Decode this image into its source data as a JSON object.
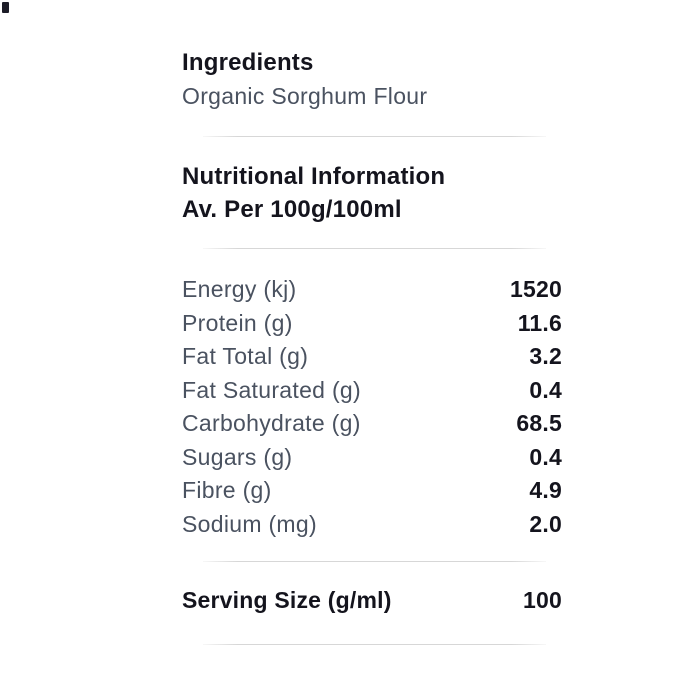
{
  "colors": {
    "background": "#ffffff",
    "heading": "#14141d",
    "label": "#4a5260",
    "value": "#14141d",
    "divider": "#d7d7d7",
    "corner_mark": "#1d1d28"
  },
  "ingredients": {
    "heading": "Ingredients",
    "value": "Organic Sorghum Flour"
  },
  "nutrition": {
    "heading": "Nutritional Information",
    "subheading": "Av. Per 100g/100ml",
    "rows": [
      {
        "label": "Energy (kj)",
        "value": "1520"
      },
      {
        "label": "Protein (g)",
        "value": "11.6"
      },
      {
        "label": "Fat Total (g)",
        "value": "3.2"
      },
      {
        "label": "Fat Saturated (g)",
        "value": "0.4"
      },
      {
        "label": "Carbohydrate (g)",
        "value": "68.5"
      },
      {
        "label": "Sugars (g)",
        "value": "0.4"
      },
      {
        "label": "Fibre (g)",
        "value": "4.9"
      },
      {
        "label": "Sodium (mg)",
        "value": "2.0"
      }
    ]
  },
  "serving": {
    "label": "Serving Size (g/ml)",
    "value": "100"
  }
}
